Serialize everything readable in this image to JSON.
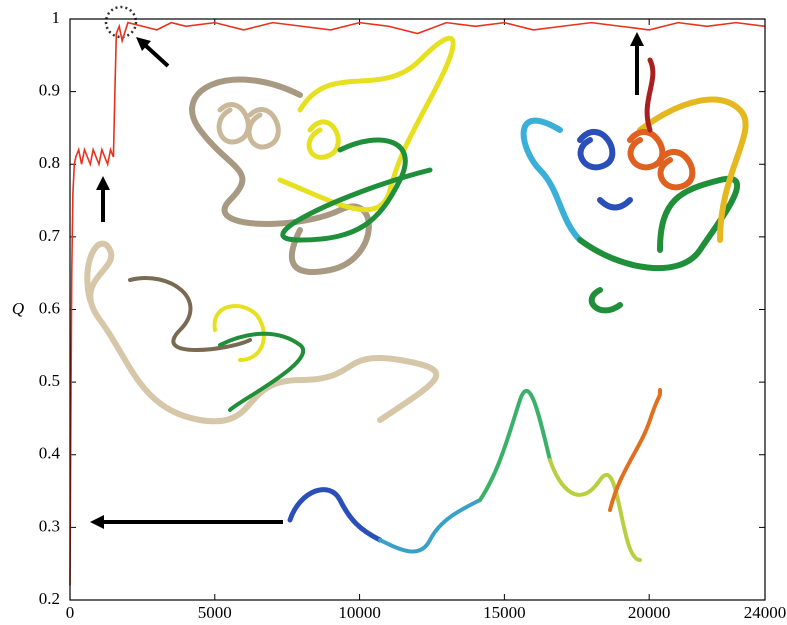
{
  "chart_data": {
    "type": "line",
    "y_label": "Q",
    "x": [
      0,
      30,
      60,
      100,
      150,
      200,
      300,
      400,
      500,
      600,
      700,
      800,
      900,
      1000,
      1100,
      1200,
      1300,
      1400,
      1500,
      1550,
      1600,
      1700,
      1800,
      2000,
      2500,
      3000,
      3500,
      4000,
      5000,
      6000,
      7000,
      8000,
      9000,
      10000,
      11000,
      12000,
      13000,
      14000,
      15000,
      16000,
      17000,
      18000,
      19000,
      20000,
      21000,
      22000,
      23000,
      24000
    ],
    "series": [
      {
        "color": "#e8321e",
        "values": [
          0.22,
          0.45,
          0.65,
          0.76,
          0.8,
          0.81,
          0.82,
          0.8,
          0.82,
          0.81,
          0.8,
          0.82,
          0.81,
          0.8,
          0.82,
          0.81,
          0.8,
          0.82,
          0.81,
          0.9,
          0.98,
          0.99,
          0.97,
          0.995,
          0.99,
          0.985,
          0.995,
          0.99,
          0.995,
          0.985,
          0.995,
          0.99,
          0.985,
          0.995,
          0.99,
          0.98,
          0.995,
          0.99,
          0.995,
          0.985,
          0.99,
          0.995,
          0.99,
          0.985,
          0.995,
          0.99,
          0.995,
          0.99
        ]
      }
    ],
    "xlim": [
      0,
      24000
    ],
    "xticks": [
      0,
      5000,
      10000,
      15000,
      20000,
      24000
    ],
    "ylim": [
      0.2,
      1
    ],
    "yticks": [
      0.2,
      0.3,
      0.4,
      0.5,
      0.6,
      0.7,
      0.8,
      0.9,
      1
    ]
  }
}
